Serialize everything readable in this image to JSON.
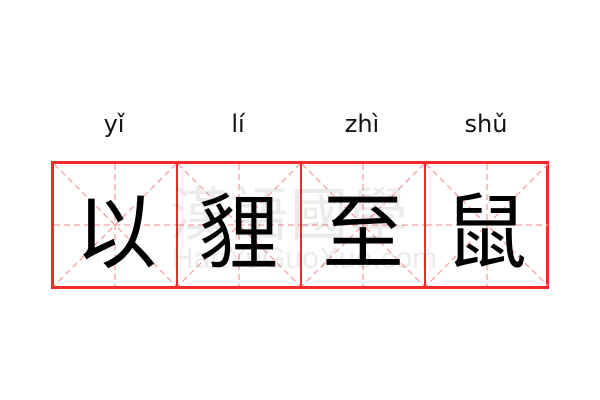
{
  "pinyin": [
    "yǐ",
    "lí",
    "zhì",
    "shǔ"
  ],
  "characters": [
    "以",
    "貍",
    "至",
    "鼠"
  ],
  "watermark": {
    "chinese": "漢語國學",
    "latin": "HanYuGuoXue.com"
  },
  "colors": {
    "grid_border": "#f32a2a",
    "guide_lines": "#f8a0a0",
    "text": "#000000"
  }
}
